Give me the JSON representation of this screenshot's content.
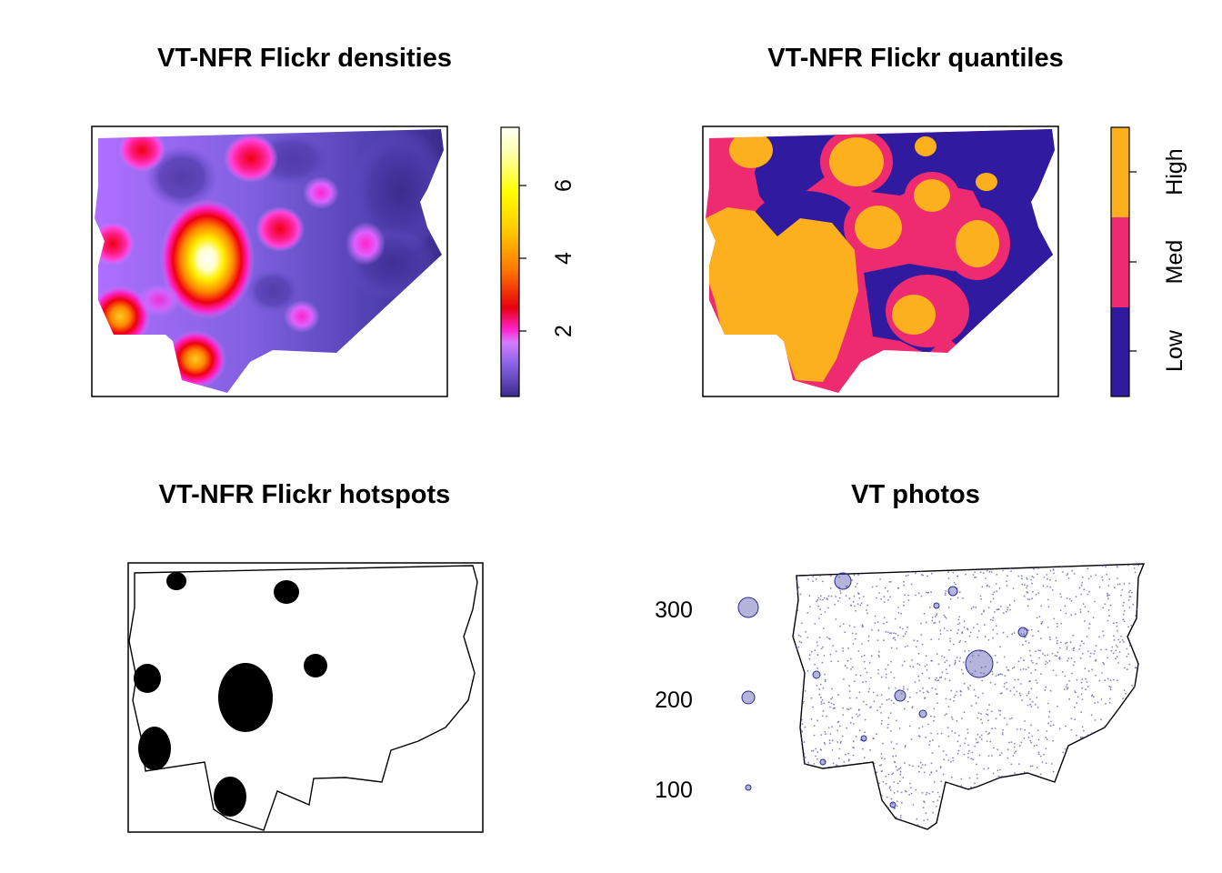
{
  "panels": {
    "densities": {
      "title": "VT-NFR Flickr densities",
      "legend_ticks": [
        "2",
        "4",
        "6"
      ],
      "legend_tick_values": [
        2,
        4,
        6
      ],
      "legend_range": [
        0.2,
        7.6
      ],
      "colors": [
        "#3b2a8c",
        "#8a63e8",
        "#d37cff",
        "#ff22cc",
        "#e8000f",
        "#ff9900",
        "#ffff00",
        "#fffff0"
      ]
    },
    "quantiles": {
      "title": "VT-NFR Flickr quantiles",
      "legend_labels": [
        "Low",
        "Med",
        "High"
      ],
      "colors": {
        "low": "#2f1aa0",
        "med": "#ee2a70",
        "high": "#fcb01d"
      }
    },
    "hotspots": {
      "title": "VT-NFR Flickr hotspots",
      "colors": {
        "hotspot": "#000000",
        "outline": "#000000"
      }
    },
    "photos": {
      "title": "VT photos",
      "legend_labels": [
        "300",
        "200",
        "100"
      ],
      "legend_values": [
        300,
        200,
        100
      ],
      "colors": {
        "point": "#5a5ab0",
        "outline": "#000000"
      }
    }
  }
}
